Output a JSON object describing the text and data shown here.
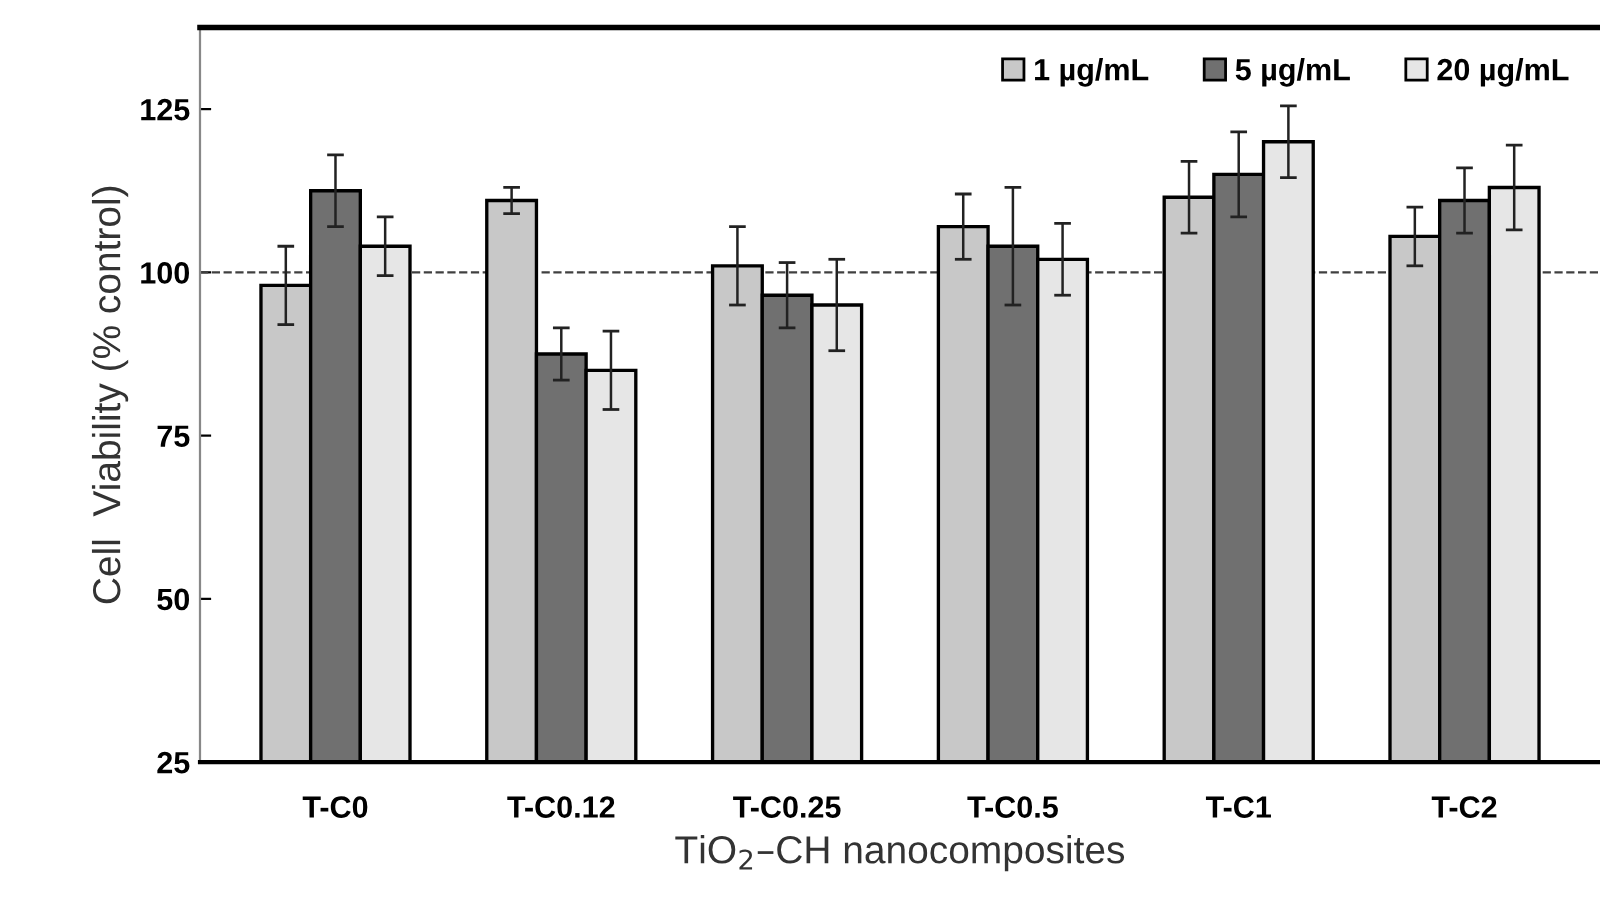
{
  "chart_data": {
    "type": "bar",
    "xlabel": "TiO$_{2}$–CH nanocomposites",
    "ylabel": "Cell  Viability (% control)",
    "categories": [
      "T-C0",
      "T-C0.12",
      "T-C0.25",
      "T-C0.5",
      "T-C1",
      "T-C2"
    ],
    "series": [
      {
        "name": "1 µg/mL",
        "color": "#c8c8c8",
        "values": [
          98,
          111,
          101,
          107,
          111.5,
          105.5
        ],
        "errors": [
          6,
          2,
          6,
          5,
          5.5,
          4.5
        ]
      },
      {
        "name": "5 µg/mL",
        "color": "#707070",
        "values": [
          112.5,
          87.5,
          96.5,
          104,
          115,
          111
        ],
        "errors": [
          5.5,
          4,
          5,
          9,
          6.5,
          5
        ]
      },
      {
        "name": "20 µg/mL",
        "color": "#e6e6e6",
        "values": [
          104,
          85,
          95,
          102,
          120,
          113
        ],
        "errors": [
          4.5,
          6,
          7,
          5.5,
          5.5,
          6.5
        ]
      }
    ],
    "ylim": [
      25,
      137.5
    ],
    "yticks": [
      25,
      50,
      75,
      100,
      125
    ],
    "ref_lines": [
      {
        "axis": "y",
        "value": 100,
        "line_style": "dashed",
        "color": "#404040"
      }
    ],
    "legend": "top right",
    "grid": false
  }
}
